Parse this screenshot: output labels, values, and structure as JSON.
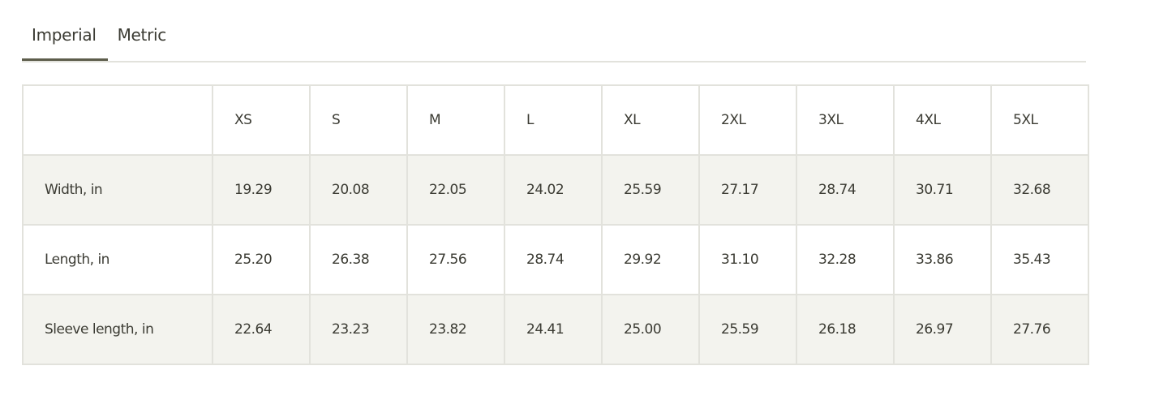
{
  "tabs": [
    {
      "label": "Imperial",
      "active": true
    },
    {
      "label": "Metric",
      "active": false
    }
  ],
  "colors": {
    "active_tab_underline": "#5d5d4b",
    "alt_row": "#f3f3ee",
    "text": "#3b3b33"
  },
  "table": {
    "headers": [
      "",
      "XS",
      "S",
      "M",
      "L",
      "XL",
      "2XL",
      "3XL",
      "4XL",
      "5XL"
    ],
    "rows": [
      {
        "label": "Width, in",
        "values": [
          "19.29",
          "20.08",
          "22.05",
          "24.02",
          "25.59",
          "27.17",
          "28.74",
          "30.71",
          "32.68"
        ]
      },
      {
        "label": "Length, in",
        "values": [
          "25.20",
          "26.38",
          "27.56",
          "28.74",
          "29.92",
          "31.10",
          "32.28",
          "33.86",
          "35.43"
        ]
      },
      {
        "label": "Sleeve length, in",
        "values": [
          "22.64",
          "23.23",
          "23.82",
          "24.41",
          "25.00",
          "25.59",
          "26.18",
          "26.97",
          "27.76"
        ]
      }
    ]
  }
}
